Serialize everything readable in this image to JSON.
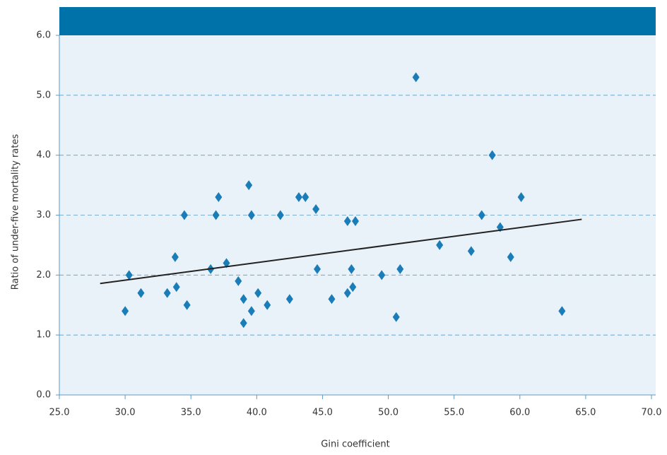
{
  "chart_data": {
    "type": "scatter",
    "xlabel": "Gini coefficient",
    "ylabel": "Ratio of under-five mortality rates",
    "x": [
      30.0,
      30.3,
      31.2,
      33.2,
      33.8,
      33.9,
      34.5,
      34.7,
      36.5,
      36.9,
      37.1,
      37.7,
      38.6,
      39.0,
      39.0,
      39.4,
      39.6,
      39.6,
      40.1,
      40.8,
      41.8,
      42.5,
      43.2,
      43.7,
      44.5,
      44.6,
      45.7,
      46.9,
      46.9,
      47.2,
      47.3,
      47.5,
      49.5,
      50.6,
      50.9,
      52.1,
      53.9,
      56.3,
      57.1,
      57.9,
      58.5,
      59.3,
      60.1,
      63.2
    ],
    "values": [
      1.4,
      2.0,
      1.7,
      1.7,
      2.3,
      1.8,
      3.0,
      1.5,
      2.1,
      3.0,
      3.3,
      2.2,
      1.9,
      1.6,
      1.2,
      3.5,
      1.4,
      3.0,
      1.7,
      1.5,
      3.0,
      1.6,
      3.3,
      3.3,
      3.1,
      2.1,
      1.6,
      2.9,
      1.7,
      2.1,
      1.8,
      2.9,
      2.0,
      1.3,
      2.1,
      5.3,
      2.5,
      2.4,
      3.0,
      4.0,
      2.8,
      2.3,
      3.3,
      1.4
    ],
    "color": "#1b7db8",
    "trendline": {
      "x": [
        28.1,
        64.7
      ],
      "values": [
        1.86,
        2.93
      ],
      "color": "#222222"
    },
    "xlim": [
      25,
      70
    ],
    "ylim": [
      0,
      6
    ],
    "xticks": [
      {
        "value": 25,
        "label": "25.0"
      },
      {
        "value": 30,
        "label": "30.0"
      },
      {
        "value": 35,
        "label": "35.0"
      },
      {
        "value": 40,
        "label": "40.0"
      },
      {
        "value": 45,
        "label": "45.0"
      },
      {
        "value": 50,
        "label": "50.0"
      },
      {
        "value": 55,
        "label": "55.0"
      },
      {
        "value": 60,
        "label": "60.0"
      },
      {
        "value": 65,
        "label": "65.0"
      },
      {
        "value": 70,
        "label": "70.0"
      }
    ],
    "yticks": [
      {
        "value": 0,
        "label": "0.0"
      },
      {
        "value": 1,
        "label": "1.0"
      },
      {
        "value": 2,
        "label": "2.0"
      },
      {
        "value": 3,
        "label": "3.0"
      },
      {
        "value": 4,
        "label": "4.0"
      },
      {
        "value": 5,
        "label": "5.0"
      },
      {
        "value": 6,
        "label": "6.0"
      }
    ],
    "grid": true
  }
}
